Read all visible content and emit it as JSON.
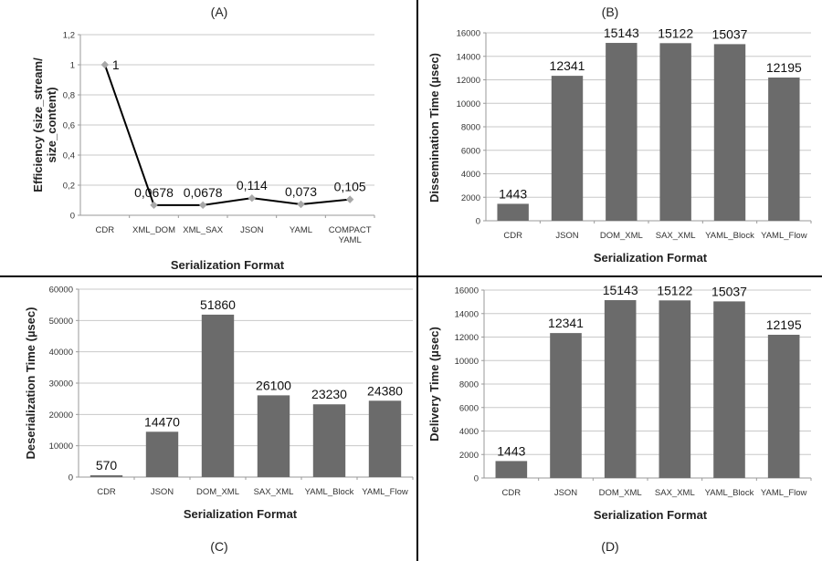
{
  "chart_data": [
    {
      "panel": "(A)",
      "type": "line",
      "categories": [
        "CDR",
        "XML_DOM",
        "XML_SAX",
        "JSON",
        "YAML",
        "COMPACT\nYAML"
      ],
      "values": [
        1,
        0.0678,
        0.0678,
        0.114,
        0.073,
        0.105
      ],
      "data_labels": [
        "1",
        "0,0678",
        "0,0678",
        "0,114",
        "0,073",
        "0,105"
      ],
      "xlabel": "Serialization Format",
      "ylabel": "Efficiency (size_stream/\nsize_content)",
      "ylim": [
        0,
        1.2
      ],
      "yticks": [
        0,
        0.2,
        0.4,
        0.6,
        0.8,
        1,
        1.2
      ],
      "ytick_labels": [
        "0",
        "0,2",
        "0,4",
        "0,6",
        "0,8",
        "1",
        "1,2"
      ],
      "grid": true,
      "line_color": "#000000",
      "marker_color": "#a8a8a8"
    },
    {
      "panel": "(B)",
      "type": "bar",
      "categories": [
        "CDR",
        "JSON",
        "DOM_XML",
        "SAX_XML",
        "YAML_Block",
        "YAML_Flow"
      ],
      "values": [
        1443,
        12341,
        15143,
        15122,
        15037,
        12195
      ],
      "xlabel": "Serialization Format",
      "ylabel": "Dissemination Time (µsec)",
      "ylim": [
        0,
        16000
      ],
      "yticks": [
        0,
        2000,
        4000,
        6000,
        8000,
        10000,
        12000,
        14000,
        16000
      ],
      "grid": true,
      "bar_color": "#6b6b6b"
    },
    {
      "panel": "(C)",
      "type": "bar",
      "categories": [
        "CDR",
        "JSON",
        "DOM_XML",
        "SAX_XML",
        "YAML_Block",
        "YAML_Flow"
      ],
      "values": [
        570,
        14470,
        51860,
        26100,
        23230,
        24380
      ],
      "xlabel": "Serialization Format",
      "ylabel": "Deserialization Time (µsec)",
      "ylim": [
        0,
        60000
      ],
      "yticks": [
        0,
        10000,
        20000,
        30000,
        40000,
        50000,
        60000
      ],
      "grid": true,
      "bar_color": "#6b6b6b"
    },
    {
      "panel": "(D)",
      "type": "bar",
      "categories": [
        "CDR",
        "JSON",
        "DOM_XML",
        "SAX_XML",
        "YAML_Block",
        "YAML_Flow"
      ],
      "values": [
        1443,
        12341,
        15143,
        15122,
        15037,
        12195
      ],
      "xlabel": "Serialization Format",
      "ylabel": "Delivery Time (µsec)",
      "ylim": [
        0,
        16000
      ],
      "yticks": [
        0,
        2000,
        4000,
        6000,
        8000,
        10000,
        12000,
        14000,
        16000
      ],
      "grid": true,
      "bar_color": "#6b6b6b"
    }
  ]
}
